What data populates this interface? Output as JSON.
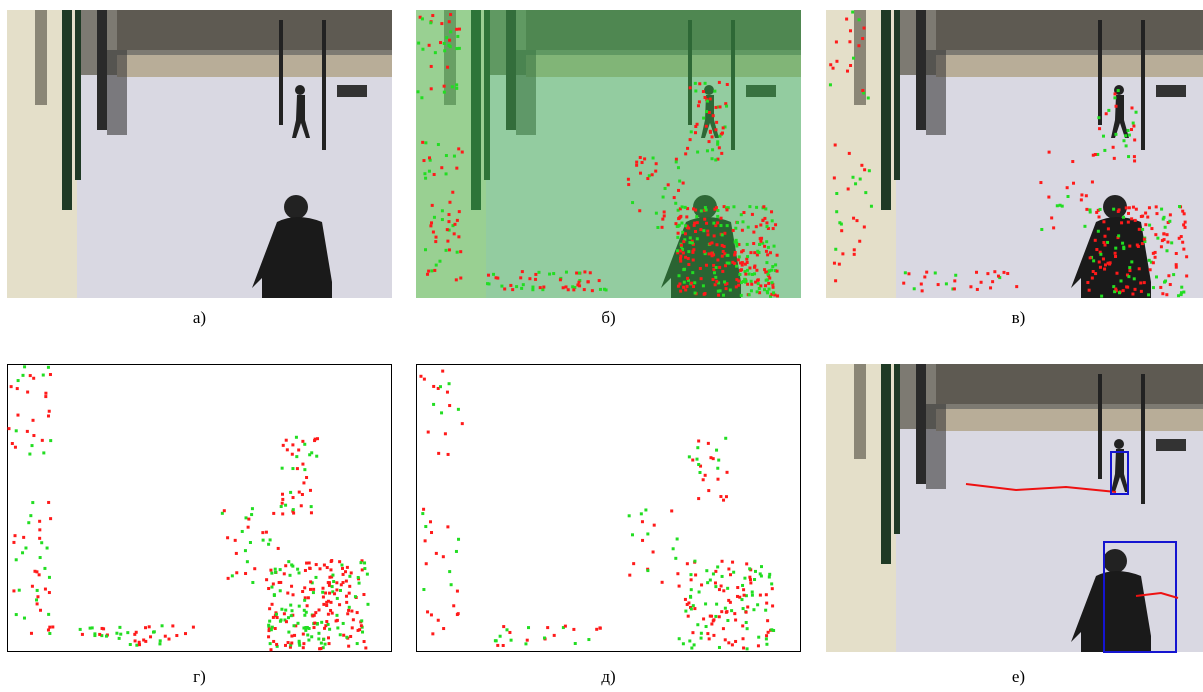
{
  "panels": [
    {
      "label": "а)"
    },
    {
      "label": "б)"
    },
    {
      "label": "в)"
    },
    {
      "label": "г)"
    },
    {
      "label": "д)"
    },
    {
      "label": "е)"
    }
  ]
}
